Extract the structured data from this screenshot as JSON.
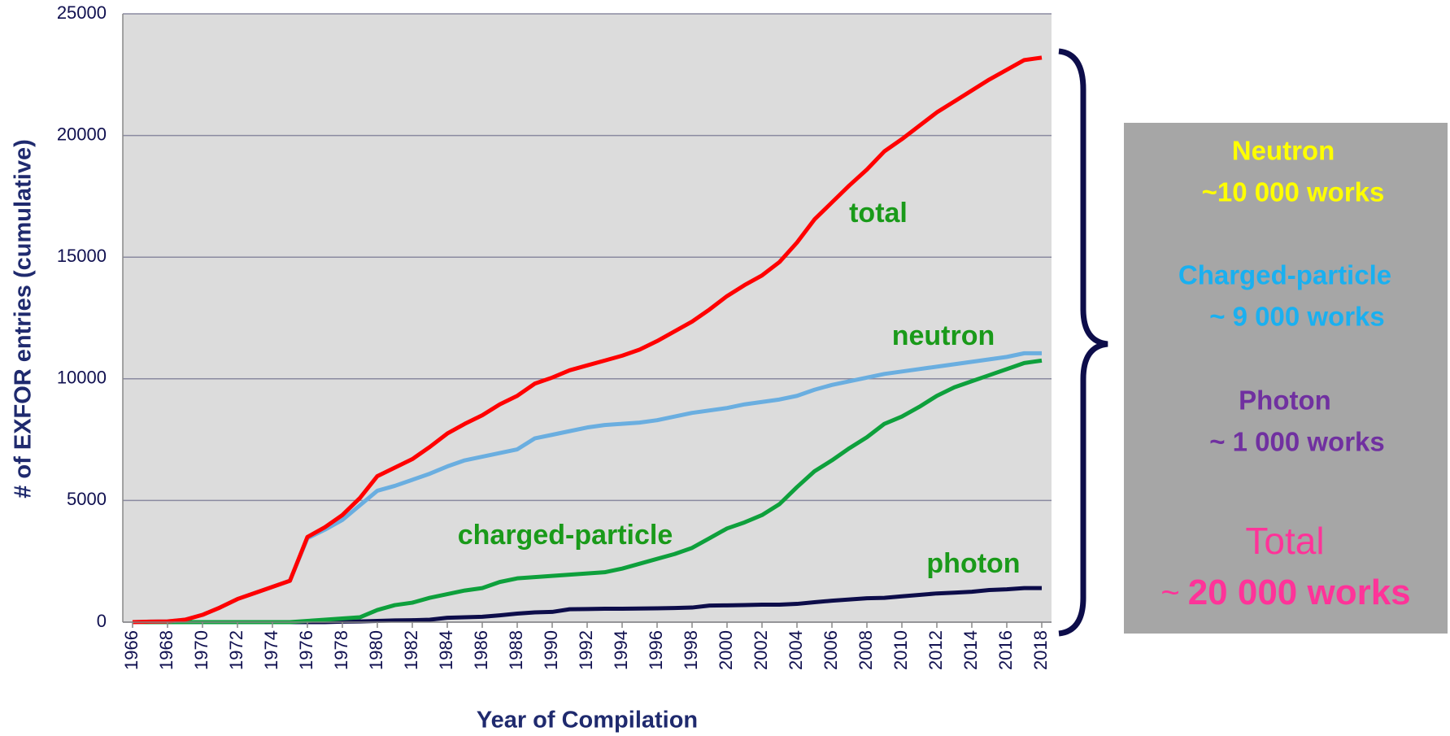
{
  "chart_data": {
    "type": "line",
    "xlabel": "Year of Compilation",
    "ylabel": "# of EXFOR entries (cumulative)",
    "x": [
      1966,
      1967,
      1968,
      1969,
      1970,
      1971,
      1972,
      1973,
      1974,
      1975,
      1976,
      1977,
      1978,
      1979,
      1980,
      1981,
      1982,
      1983,
      1984,
      1985,
      1986,
      1987,
      1988,
      1989,
      1990,
      1991,
      1992,
      1993,
      1994,
      1995,
      1996,
      1997,
      1998,
      1999,
      2000,
      2001,
      2002,
      2003,
      2004,
      2005,
      2006,
      2007,
      2008,
      2009,
      2010,
      2011,
      2012,
      2013,
      2014,
      2015,
      2016,
      2017,
      2018
    ],
    "series": [
      {
        "name": "photon",
        "color": "#0d0d4a",
        "values": [
          0,
          0,
          0,
          0,
          0,
          0,
          0,
          0,
          0,
          0,
          0,
          0,
          20,
          30,
          50,
          70,
          80,
          100,
          180,
          200,
          220,
          280,
          350,
          400,
          420,
          530,
          540,
          550,
          550,
          560,
          570,
          580,
          600,
          680,
          690,
          700,
          720,
          720,
          750,
          820,
          880,
          930,
          980,
          1000,
          1060,
          1120,
          1180,
          1210,
          1250,
          1320,
          1350,
          1400,
          1400
        ]
      },
      {
        "name": "charged-particle",
        "color": "#0ea03c",
        "values": [
          0,
          0,
          0,
          0,
          0,
          0,
          0,
          0,
          0,
          0,
          50,
          100,
          150,
          200,
          500,
          700,
          800,
          1000,
          1150,
          1300,
          1400,
          1650,
          1800,
          1850,
          1900,
          1950,
          2000,
          2050,
          2200,
          2400,
          2600,
          2800,
          3050,
          3450,
          3850,
          4100,
          4400,
          4850,
          5550,
          6200,
          6650,
          7150,
          7600,
          8150,
          8450,
          8850,
          9300,
          9650,
          9900,
          10150,
          10400,
          10650,
          10750
        ]
      },
      {
        "name": "neutron",
        "color": "#6aaee0",
        "values": [
          0,
          20,
          30,
          100,
          300,
          600,
          950,
          1200,
          1450,
          1700,
          3450,
          3800,
          4200,
          4800,
          5400,
          5600,
          5850,
          6100,
          6400,
          6650,
          6800,
          6950,
          7100,
          7550,
          7700,
          7850,
          8000,
          8100,
          8150,
          8200,
          8300,
          8450,
          8600,
          8700,
          8800,
          8950,
          9050,
          9150,
          9300,
          9550,
          9750,
          9900,
          10050,
          10200,
          10300,
          10400,
          10500,
          10600,
          10700,
          10800,
          10900,
          11050,
          11050
        ]
      },
      {
        "name": "total",
        "color": "#ff0000",
        "values": [
          0,
          20,
          30,
          100,
          300,
          600,
          950,
          1200,
          1450,
          1700,
          3500,
          3900,
          4400,
          5100,
          6000,
          6350,
          6700,
          7200,
          7750,
          8150,
          8500,
          8950,
          9300,
          9800,
          10050,
          10350,
          10550,
          10750,
          10950,
          11200,
          11550,
          11950,
          12350,
          12850,
          13400,
          13850,
          14250,
          14800,
          15600,
          16550,
          17250,
          17950,
          18600,
          19350,
          19850,
          20400,
          20950,
          21400,
          21850,
          22300,
          22700,
          23100,
          23200
        ]
      }
    ],
    "xlim": [
      1966,
      2018
    ],
    "xticks": [
      1966,
      1968,
      1970,
      1972,
      1974,
      1976,
      1978,
      1980,
      1982,
      1984,
      1986,
      1988,
      1990,
      1992,
      1994,
      1996,
      1998,
      2000,
      2002,
      2004,
      2006,
      2008,
      2010,
      2012,
      2014,
      2016,
      2018
    ],
    "ylim": [
      0,
      25000
    ],
    "yticks": [
      0,
      5000,
      10000,
      15000,
      20000,
      25000
    ],
    "grid": true,
    "annotations": [
      "total",
      "neutron",
      "charged-particle",
      "photon"
    ],
    "summary": {
      "neutron": {
        "title": "Neutron",
        "text": "~10 000 works"
      },
      "charged": {
        "title": "Charged-particle",
        "text": "~ 9 000 works"
      },
      "photon": {
        "title": "Photon",
        "text": "~ 1 000 works"
      },
      "total": {
        "title": "Total",
        "prefix": "~",
        "text": "20 000 works"
      }
    }
  }
}
